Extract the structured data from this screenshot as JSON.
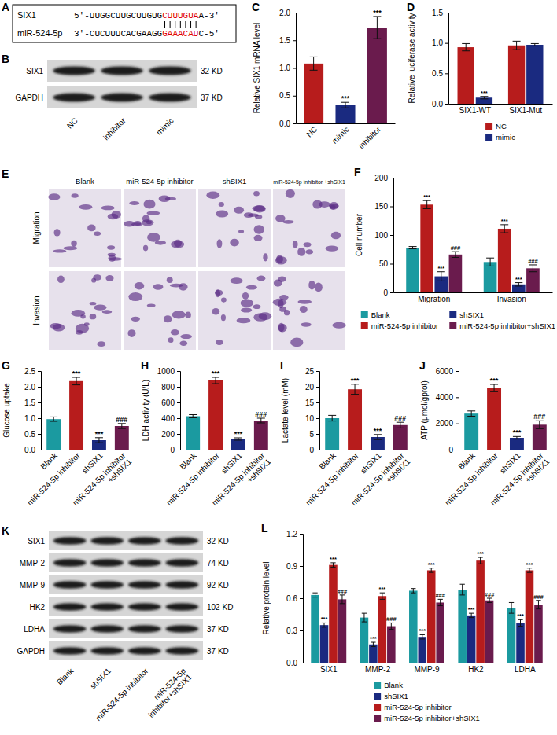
{
  "chart_data": [
    {
      "panel_label": "C",
      "type": "bar",
      "categories": [
        "NC",
        "mimic",
        "inhibitor"
      ],
      "values": [
        1.08,
        0.33,
        1.73
      ],
      "errors": [
        0.12,
        0.05,
        0.2
      ],
      "annotations": [
        null,
        "***",
        "***"
      ],
      "colors": [
        "#b71c1c",
        "#1a2a80",
        "#6a1b4d"
      ],
      "ylabel": "Relative SIX1 mRNA level",
      "ylim": [
        0,
        2
      ],
      "yticks": [
        {
          "value": 0,
          "label": "0.0"
        },
        0.5,
        {
          "value": 1,
          "label": "1.0"
        },
        1.5,
        {
          "value": 2,
          "label": "2.0"
        }
      ]
    },
    {
      "panel_label": "D",
      "type": "bar",
      "categories": [
        "SIX1-WT",
        "SIX1-Mut"
      ],
      "series": [
        {
          "name": "NC",
          "color": "#b71c1c",
          "values": [
            0.93,
            0.96
          ],
          "errors": [
            0.06,
            0.07
          ]
        },
        {
          "name": "mimic",
          "color": "#1a2a80",
          "values": [
            0.1,
            0.97
          ],
          "errors": [
            0.02,
            0.02
          ],
          "annotations": [
            "***",
            null
          ]
        }
      ],
      "ylabel": "Relative luciferase activity",
      "ylim": [
        0,
        1.5
      ],
      "yticks": [
        {
          "value": 0,
          "label": "0.0"
        },
        0.5,
        {
          "value": 1,
          "label": "1.0"
        },
        1.5
      ],
      "legend": "bottom"
    },
    {
      "panel_label": "F",
      "type": "bar",
      "categories": [
        "Migration",
        "Invasion"
      ],
      "series": [
        {
          "name": "Blank",
          "color": "#1b9aa0",
          "values": [
            78,
            53
          ],
          "errors": [
            2,
            7
          ]
        },
        {
          "name": "miR-524-5p inhibitor",
          "color": "#b71c1c",
          "values": [
            153,
            111
          ],
          "errors": [
            7,
            7
          ],
          "annotations": [
            "***",
            "***"
          ]
        },
        {
          "name": "shSIX1",
          "color": "#1a2a80",
          "values": [
            28,
            14
          ],
          "errors": [
            8,
            3
          ],
          "annotations": [
            "***",
            "***"
          ]
        },
        {
          "name": "miR-524-5p inhibitor+shSIX1",
          "color": "#6a1b4d",
          "values": [
            66,
            42
          ],
          "errors": [
            5,
            6
          ],
          "annotations": [
            "###",
            "###"
          ]
        }
      ],
      "ylabel": "Cell number",
      "ylim": [
        0,
        200
      ],
      "yticks": [
        0,
        50,
        100,
        150,
        200
      ],
      "legend": "bottom"
    },
    {
      "panel_label": "G",
      "type": "bar",
      "categories": [
        "Blank",
        "miR-524-5p inhibitor",
        "shSIX1",
        "miR-524-5p inhibitor +shSIX1"
      ],
      "values": [
        0.97,
        2.18,
        0.3,
        0.75
      ],
      "errors": [
        0.07,
        0.12,
        0.08,
        0.08
      ],
      "annotations": [
        null,
        "***",
        "***",
        "###"
      ],
      "colors": [
        "#1b9aa0",
        "#b71c1c",
        "#1a2a80",
        "#6a1b4d"
      ],
      "ylabel": "Glucose uptake",
      "ylim": [
        0,
        2.5
      ],
      "yticks": [
        {
          "value": 0,
          "label": "0.0"
        },
        0.5,
        {
          "value": 1,
          "label": "1.0"
        },
        1.5,
        {
          "value": 2,
          "label": "2.0"
        },
        2.5
      ]
    },
    {
      "panel_label": "H",
      "type": "bar",
      "categories": [
        "Blank",
        "miR-524-5p inhibitor",
        "shSIX1",
        "miR-524-5p inhibitor +shSIX1"
      ],
      "values": [
        425,
        880,
        135,
        370
      ],
      "errors": [
        20,
        40,
        15,
        30
      ],
      "annotations": [
        null,
        "***",
        "***",
        "###"
      ],
      "colors": [
        "#1b9aa0",
        "#b71c1c",
        "#1a2a80",
        "#6a1b4d"
      ],
      "ylabel": "LDH activity (U/L)",
      "ylim": [
        0,
        1000
      ],
      "yticks": [
        0,
        200,
        400,
        600,
        800,
        1000
      ]
    },
    {
      "panel_label": "I",
      "type": "bar",
      "categories": [
        "Blank",
        "miR-524-5p inhibitor",
        "shSIX1",
        "miR-524-5p inhibitor +shSIX1"
      ],
      "values": [
        10,
        19.2,
        4,
        7.8
      ],
      "errors": [
        0.9,
        1.6,
        0.8,
        0.9
      ],
      "annotations": [
        null,
        "***",
        "***",
        "###"
      ],
      "colors": [
        "#1b9aa0",
        "#b71c1c",
        "#1a2a80",
        "#6a1b4d"
      ],
      "ylabel": "Lactate level (mM)",
      "ylim": [
        0,
        25
      ],
      "yticks": [
        0,
        5,
        10,
        15,
        20,
        25
      ]
    },
    {
      "panel_label": "J",
      "type": "bar",
      "categories": [
        "Blank",
        "miR-524-5p inhibitor",
        "shSIX1",
        "miR-524-5p inhibitor +shSIX1"
      ],
      "values": [
        2750,
        4700,
        900,
        1900
      ],
      "errors": [
        200,
        280,
        100,
        300
      ],
      "annotations": [
        null,
        "***",
        "***",
        "###"
      ],
      "colors": [
        "#1b9aa0",
        "#b71c1c",
        "#1a2a80",
        "#6a1b4d"
      ],
      "ylabel": "ATP (μmol/gprot)",
      "ylim": [
        0,
        6000
      ],
      "yticks": [
        0,
        2000,
        4000,
        6000
      ]
    },
    {
      "panel_label": "L",
      "type": "bar",
      "categories": [
        "SIX1",
        "MMP-2",
        "MMP-9",
        "HK2",
        "LDHA"
      ],
      "series": [
        {
          "name": "Blank",
          "color": "#1b9aa0",
          "values": [
            0.63,
            0.42,
            0.67,
            0.68,
            0.51
          ],
          "errors": [
            0.02,
            0.04,
            0.02,
            0.05,
            0.05
          ]
        },
        {
          "name": "shSIX1",
          "color": "#1a2a80",
          "values": [
            0.35,
            0.17,
            0.24,
            0.44,
            0.37
          ],
          "errors": [
            0.02,
            0.02,
            0.02,
            0.02,
            0.03
          ],
          "annotations": [
            "***",
            "***",
            "***",
            "***",
            "***"
          ]
        },
        {
          "name": "miR-524-5p inhibitor",
          "color": "#b71c1c",
          "values": [
            0.91,
            0.62,
            0.86,
            0.95,
            0.86
          ],
          "errors": [
            0.02,
            0.03,
            0.02,
            0.03,
            0.02
          ],
          "annotations": [
            "***",
            "***",
            "***",
            "***",
            "***"
          ]
        },
        {
          "name": "miR-524-5p inhibitor+shSIX1",
          "color": "#6a1b4d",
          "values": [
            0.59,
            0.34,
            0.56,
            0.58,
            0.54
          ],
          "errors": [
            0.04,
            0.03,
            0.03,
            0.02,
            0.04
          ],
          "annotations": [
            "###",
            "###",
            "###",
            "###",
            "###"
          ]
        }
      ],
      "ylabel": "Relative protein level",
      "ylim": [
        0,
        1.2
      ],
      "yticks": [
        {
          "value": 0,
          "label": "0.0"
        },
        0.3,
        0.6,
        0.9,
        1.2
      ],
      "legend": "bottom"
    }
  ],
  "panels": [
    {
      "panel_label": "A",
      "type": "alignment",
      "rows": [
        {
          "name": "SIX1",
          "prefix": "5'-UUGGCUUGCUUGUG",
          "seed": "CUUUGUA",
          "suffix": "A-3'"
        },
        {
          "name": "miR-524-5p",
          "prefix": "3'-CUCUUUCACGAAGG",
          "seed": "GAAACAU",
          "suffix": "C-5'"
        }
      ]
    },
    {
      "panel_label": "B",
      "type": "blot",
      "lanes": [
        "NC",
        "inhibitor",
        "mimic"
      ],
      "rows": [
        {
          "protein": "SIX1",
          "size": "32 KD"
        },
        {
          "protein": "GAPDH",
          "size": "37 KD"
        }
      ]
    },
    {
      "panel_label": "E",
      "type": "images",
      "columns": [
        "Blank",
        "miR-524-5p inhibitor",
        "shSIX1",
        "miR-524-5p inhibitor +shSIX1"
      ],
      "rows": [
        "Migration",
        "Invasion"
      ]
    },
    {
      "panel_label": "K",
      "type": "blot",
      "lanes": [
        "Blank",
        "shSIX1",
        "miR-524-5p inhibitor",
        "miR-524-5p inhibitor+shSIX1"
      ],
      "rows": [
        {
          "protein": "SIX1",
          "size": "32 KD"
        },
        {
          "protein": "MMP-2",
          "size": "74 KD"
        },
        {
          "protein": "MMP-9",
          "size": "92 KD"
        },
        {
          "protein": "HK2",
          "size": "102 KD"
        },
        {
          "protein": "LDHA",
          "size": "37 KD"
        },
        {
          "protein": "GAPDH",
          "size": "37 KD"
        }
      ]
    }
  ]
}
